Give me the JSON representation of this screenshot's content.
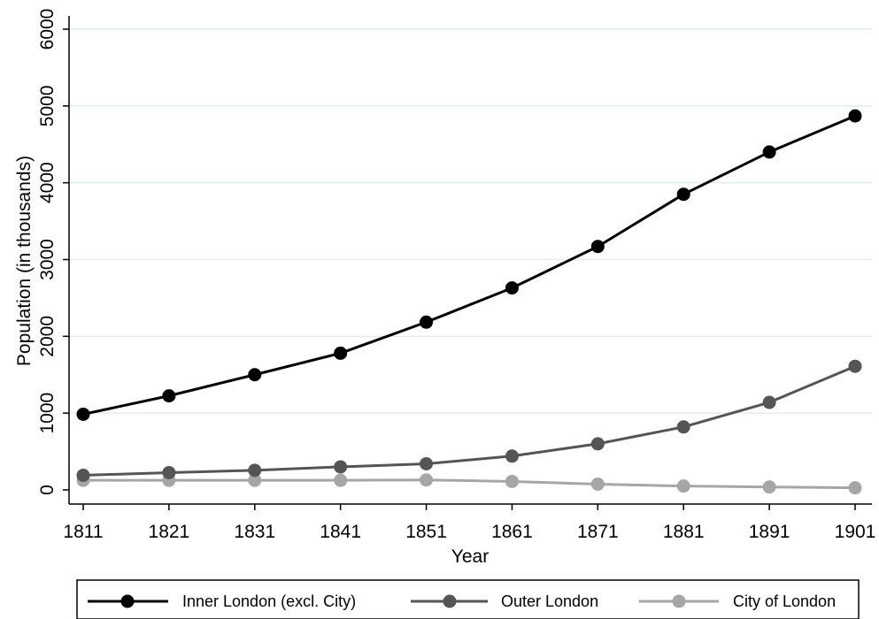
{
  "chart_data": {
    "type": "line",
    "x": [
      1811,
      1821,
      1831,
      1841,
      1851,
      1861,
      1871,
      1881,
      1891,
      1901
    ],
    "series": [
      {
        "name": "Inner London (excl. City)",
        "color": "#000000",
        "values": [
          985,
          1225,
          1500,
          1780,
          2185,
          2630,
          3170,
          3850,
          4400,
          4870
        ]
      },
      {
        "name": "Outer London",
        "color": "#555555",
        "values": [
          190,
          225,
          255,
          300,
          340,
          440,
          600,
          820,
          1140,
          1610
        ]
      },
      {
        "name": "City of London",
        "color": "#a6a6a6",
        "values": [
          125,
          125,
          125,
          125,
          130,
          110,
          75,
          50,
          38,
          27
        ]
      }
    ],
    "xlabel": "Year",
    "ylabel": "Population (in thousands)",
    "xticks": [
      "1811",
      "1821",
      "1831",
      "1841",
      "1851",
      "1861",
      "1871",
      "1881",
      "1891",
      "1901"
    ],
    "yticks": [
      "0",
      "1000",
      "2000",
      "3000",
      "4000",
      "5000",
      "6000"
    ],
    "ylim": [
      0,
      6000
    ],
    "grid": "horizontal",
    "legend_position": "bottom"
  }
}
